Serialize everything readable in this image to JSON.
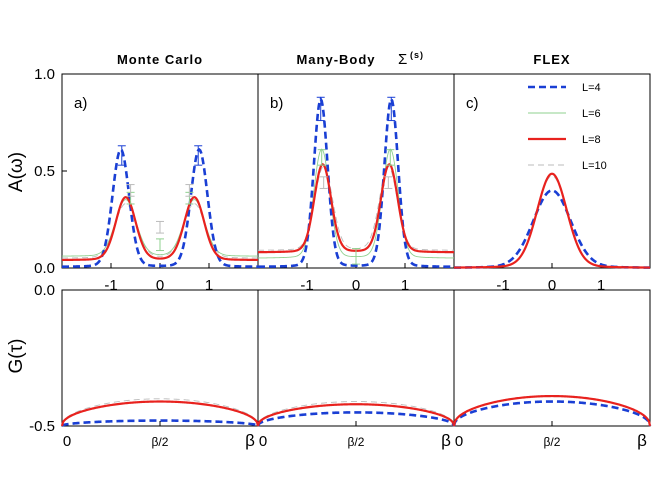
{
  "chart_data": {
    "type": "line",
    "colors": {
      "L4": "#1a3fd4",
      "L6": "#8fd08f",
      "L8": "#e8221e",
      "L10": "#bbbbbb"
    },
    "legend": [
      "L=4",
      "L=6",
      "L=8",
      "L=10"
    ],
    "ylabel_top": "A(ω)",
    "ylabel_bottom": "G(τ)",
    "columns": [
      {
        "title": "Monte Carlo",
        "sigma": "",
        "panel_label": "a)",
        "spectral": {
          "L4": [
            {
              "w0": -0.8,
              "h": 0.56,
              "s": 0.17,
              "g": 0.22
            },
            {
              "w0": 0.8,
              "h": 0.56,
              "s": 0.17,
              "g": 0.22
            },
            0.005
          ],
          "L6": [
            {
              "w0": -0.7,
              "h": 0.27,
              "s": 0.21,
              "g": 0.3
            },
            {
              "w0": 0.7,
              "h": 0.27,
              "s": 0.21,
              "g": 0.3
            },
            0.06
          ],
          "L8": [
            {
              "w0": -0.7,
              "h": 0.3,
              "s": 0.2,
              "g": 0.3
            },
            {
              "w0": 0.7,
              "h": 0.3,
              "s": 0.2,
              "g": 0.3
            },
            0.04
          ],
          "L10": [
            {
              "w0": -0.7,
              "h": 0.26,
              "s": 0.22,
              "g": 0.32
            },
            {
              "w0": 0.7,
              "h": 0.26,
              "s": 0.22,
              "g": 0.32
            },
            0.05
          ]
        },
        "errorbars": [
          {
            "series": "L4",
            "x": [
              -0.78,
              0.78
            ],
            "y": [
              0.58,
              0.58
            ],
            "err": 0.05
          },
          {
            "series": "L6",
            "x": [
              -0.6,
              0.6,
              0
            ],
            "y": [
              0.36,
              0.36,
              0.12
            ],
            "err": 0.03
          },
          {
            "series": "L10",
            "x": [
              -0.6,
              0.6,
              0
            ],
            "y": [
              0.4,
              0.4,
              0.21
            ],
            "err": 0.03
          }
        ],
        "green_depth": {
          "L4": -0.48,
          "L6": -0.41,
          "L8": -0.41,
          "L10": -0.4
        }
      },
      {
        "title": "Many-Body",
        "sigma": "Σ",
        "sigma_sup": "(s)",
        "panel_label": "b)",
        "spectral": {
          "L4": [
            {
              "w0": -0.72,
              "h": 0.8,
              "s": 0.14,
              "g": 0.18
            },
            {
              "w0": 0.72,
              "h": 0.8,
              "s": 0.14,
              "g": 0.18
            },
            0.005
          ],
          "L6": [
            {
              "w0": -0.7,
              "h": 0.52,
              "s": 0.16,
              "g": 0.24
            },
            {
              "w0": 0.7,
              "h": 0.52,
              "s": 0.16,
              "g": 0.24
            },
            0.05
          ],
          "L8": [
            {
              "w0": -0.68,
              "h": 0.42,
              "s": 0.17,
              "g": 0.26
            },
            {
              "w0": 0.68,
              "h": 0.42,
              "s": 0.17,
              "g": 0.26
            },
            0.08
          ],
          "L10": [
            {
              "w0": -0.66,
              "h": 0.4,
              "s": 0.18,
              "g": 0.28
            },
            {
              "w0": 0.66,
              "h": 0.4,
              "s": 0.18,
              "g": 0.28
            },
            0.09
          ]
        },
        "errorbars": [
          {
            "series": "L4",
            "x": [
              -0.72,
              0.72
            ],
            "y": [
              0.82,
              0.82
            ],
            "err": 0.06
          },
          {
            "series": "L6",
            "x": [
              -0.7,
              0.7,
              0
            ],
            "y": [
              0.57,
              0.57,
              0.06
            ],
            "err": 0.04
          },
          {
            "series": "L10",
            "x": [
              -0.66,
              0.66
            ],
            "y": [
              0.44,
              0.44
            ],
            "err": 0.03
          }
        ],
        "green_depth": {
          "L4": -0.45,
          "L6": -0.42,
          "L8": -0.42,
          "L10": -0.41
        }
      },
      {
        "title": "FLEX",
        "sigma": "",
        "panel_label": "c)",
        "spectral": {
          "L4": [
            {
              "w0": 0,
              "h": 0.37,
              "s": 0.38,
              "g": 0.55
            },
            0.0
          ],
          "L6": [
            {
              "w0": 0,
              "h": 0.45,
              "s": 0.3,
              "g": 0.5
            },
            0.0
          ],
          "L8": [
            {
              "w0": 0,
              "h": 0.45,
              "s": 0.3,
              "g": 0.5
            },
            0.0
          ],
          "L10": [
            {
              "w0": 0,
              "h": 0.44,
              "s": 0.3,
              "g": 0.5
            },
            0.0
          ]
        },
        "errorbars": [],
        "green_depth": {
          "L4": -0.41,
          "L6": -0.39,
          "L8": -0.39,
          "L10": -0.39
        }
      }
    ],
    "spectral_axis": {
      "xlim": [
        -2,
        2
      ],
      "ylim": [
        0,
        1.0
      ],
      "xticks": [
        "-1",
        "0",
        "1"
      ],
      "yticks": [
        "0.0",
        "0.5",
        "1.0"
      ]
    },
    "green_axis": {
      "xlim": [
        0,
        1
      ],
      "ylim": [
        -0.5,
        0.0
      ],
      "xticks": [
        "0",
        "β/2",
        "β"
      ],
      "yticks": [
        "-0.5",
        "0.0"
      ]
    }
  }
}
